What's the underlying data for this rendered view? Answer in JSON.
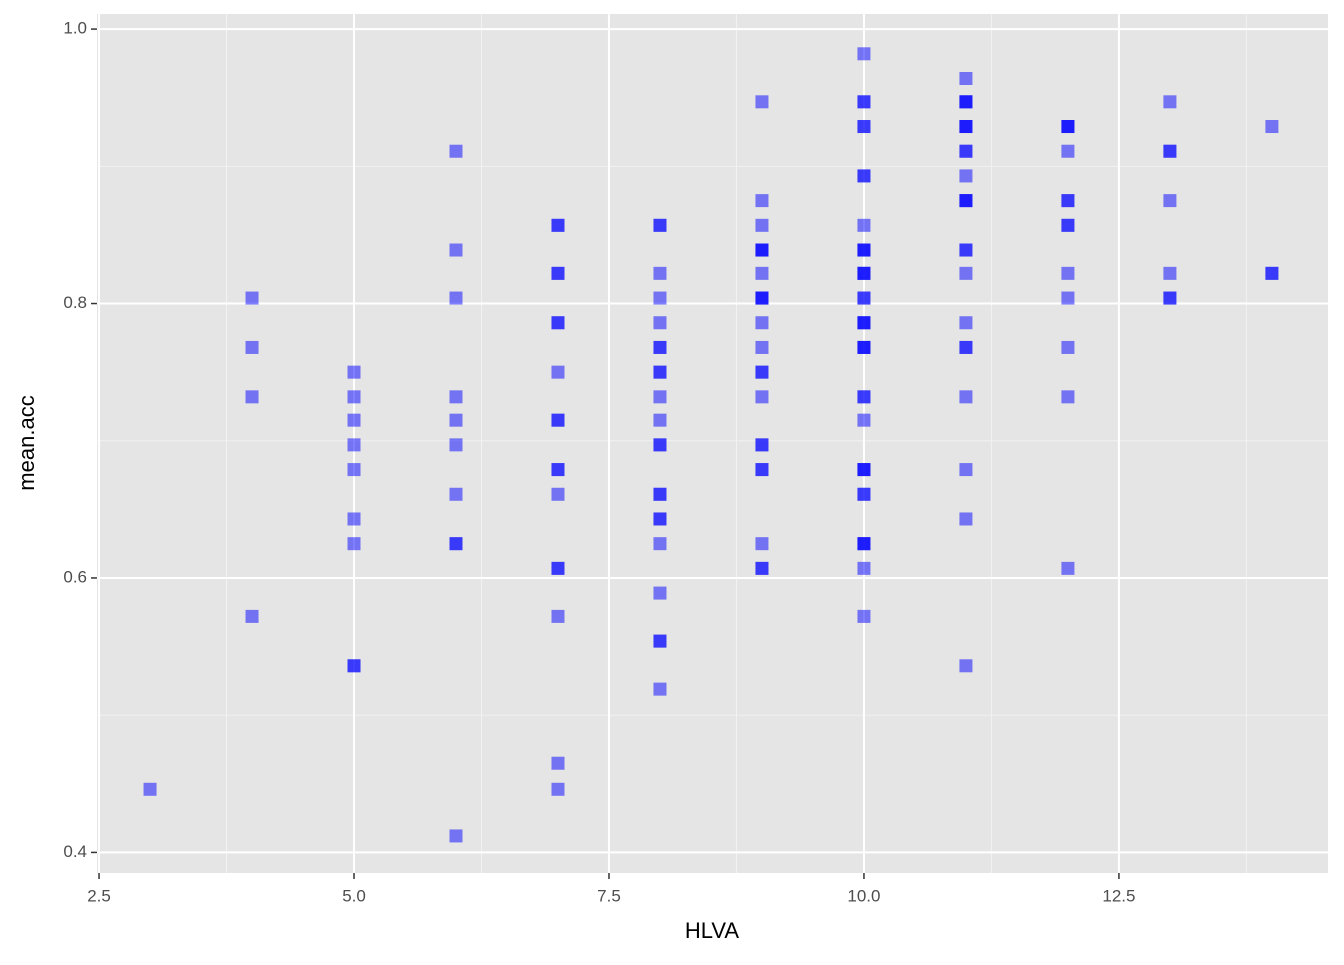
{
  "chart_data": {
    "type": "scatter",
    "x_label": "HLVA",
    "y_label": "mean.acc",
    "color": "#0000ff",
    "grid": true,
    "xlim": [
      2.48,
      14.55
    ],
    "ylim": [
      0.385,
      1.011
    ],
    "xticks": [
      2.5,
      {
        "value": 5,
        "label": "5.0"
      },
      7.5,
      {
        "value": 10,
        "label": "10.0"
      },
      12.5
    ],
    "yticks": [
      0.4,
      0.6,
      0.8,
      {
        "value": 1,
        "label": "1.0"
      }
    ],
    "x": [
      3,
      4,
      4,
      4,
      4,
      5,
      5,
      5,
      5,
      5,
      5,
      5,
      5,
      5,
      6,
      6,
      6,
      6,
      6,
      6,
      6,
      6,
      6,
      6,
      7,
      7,
      7,
      7,
      7,
      7,
      7,
      7,
      7,
      7,
      7,
      7,
      7,
      7,
      7,
      7,
      7,
      8,
      8,
      8,
      8,
      8,
      8,
      8,
      8,
      8,
      8,
      8,
      8,
      8,
      8,
      8,
      8,
      8,
      8,
      8,
      8,
      8,
      8,
      9,
      9,
      9,
      9,
      9,
      9,
      9,
      9,
      9,
      9,
      9,
      9,
      9,
      9,
      9,
      9,
      9,
      9,
      9,
      9,
      9,
      9,
      10,
      10,
      10,
      10,
      10,
      10,
      10,
      10,
      10,
      10,
      10,
      10,
      10,
      10,
      10,
      10,
      10,
      10,
      10,
      10,
      10,
      10,
      10,
      10,
      10,
      10,
      10,
      10,
      10,
      10,
      10,
      10,
      10,
      10,
      10,
      11,
      11,
      11,
      11,
      11,
      11,
      11,
      11,
      11,
      11,
      11,
      11,
      11,
      11,
      11,
      11,
      11,
      11,
      11,
      11,
      11,
      11,
      11,
      12,
      12,
      12,
      12,
      12,
      12,
      12,
      12,
      12,
      12,
      12,
      12,
      12,
      13,
      13,
      13,
      13,
      13,
      13,
      13,
      14,
      14,
      14
    ],
    "y": [
      0.446,
      0.804,
      0.768,
      0.732,
      0.572,
      0.75,
      0.732,
      0.715,
      0.697,
      0.679,
      0.643,
      0.625,
      0.536,
      0.536,
      0.911,
      0.839,
      0.804,
      0.732,
      0.715,
      0.697,
      0.661,
      0.625,
      0.625,
      0.412,
      0.857,
      0.857,
      0.822,
      0.822,
      0.786,
      0.786,
      0.75,
      0.715,
      0.715,
      0.679,
      0.679,
      0.661,
      0.607,
      0.607,
      0.572,
      0.465,
      0.446,
      0.857,
      0.857,
      0.822,
      0.804,
      0.786,
      0.768,
      0.768,
      0.75,
      0.75,
      0.732,
      0.715,
      0.697,
      0.697,
      0.661,
      0.661,
      0.643,
      0.643,
      0.625,
      0.589,
      0.554,
      0.554,
      0.519,
      0.947,
      0.875,
      0.857,
      0.839,
      0.839,
      0.839,
      0.822,
      0.804,
      0.804,
      0.804,
      0.786,
      0.768,
      0.75,
      0.75,
      0.732,
      0.697,
      0.697,
      0.679,
      0.679,
      0.625,
      0.607,
      0.607,
      0.982,
      0.947,
      0.947,
      0.929,
      0.929,
      0.893,
      0.893,
      0.857,
      0.839,
      0.839,
      0.839,
      0.822,
      0.822,
      0.822,
      0.804,
      0.804,
      0.786,
      0.786,
      0.786,
      0.768,
      0.768,
      0.768,
      0.732,
      0.732,
      0.715,
      0.679,
      0.679,
      0.679,
      0.661,
      0.661,
      0.625,
      0.625,
      0.625,
      0.607,
      0.572,
      0.964,
      0.947,
      0.947,
      0.947,
      0.929,
      0.929,
      0.929,
      0.911,
      0.911,
      0.893,
      0.875,
      0.875,
      0.875,
      0.839,
      0.839,
      0.822,
      0.786,
      0.768,
      0.768,
      0.732,
      0.679,
      0.643,
      0.536,
      0.929,
      0.929,
      0.929,
      0.911,
      0.875,
      0.875,
      0.857,
      0.857,
      0.822,
      0.804,
      0.768,
      0.732,
      0.607,
      0.947,
      0.911,
      0.911,
      0.875,
      0.822,
      0.804,
      0.804,
      0.929,
      0.822,
      0.822
    ]
  }
}
